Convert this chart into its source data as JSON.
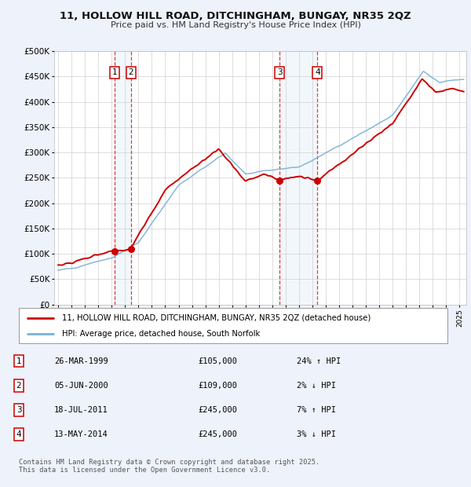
{
  "title1": "11, HOLLOW HILL ROAD, DITCHINGHAM, BUNGAY, NR35 2QZ",
  "title2": "Price paid vs. HM Land Registry's House Price Index (HPI)",
  "ytick_vals": [
    0,
    50000,
    100000,
    150000,
    200000,
    250000,
    300000,
    350000,
    400000,
    450000,
    500000
  ],
  "xlim": [
    1994.7,
    2025.5
  ],
  "ylim": [
    0,
    500000
  ],
  "bg_color": "#eef2fb",
  "plot_bg": "#ffffff",
  "legend1": "11, HOLLOW HILL ROAD, DITCHINGHAM, BUNGAY, NR35 2QZ (detached house)",
  "legend2": "HPI: Average price, detached house, South Norfolk",
  "transactions": [
    {
      "num": 1,
      "date": "26-MAR-1999",
      "price": 105000,
      "pct": "24%",
      "dir": "↑",
      "year": 1999.23
    },
    {
      "num": 2,
      "date": "05-JUN-2000",
      "price": 109000,
      "pct": "2%",
      "dir": "↓",
      "year": 2000.43
    },
    {
      "num": 3,
      "date": "18-JUL-2011",
      "price": 245000,
      "pct": "7%",
      "dir": "↑",
      "year": 2011.54
    },
    {
      "num": 4,
      "date": "13-MAY-2014",
      "price": 245000,
      "pct": "3%",
      "dir": "↓",
      "year": 2014.37
    }
  ],
  "footnote": "Contains HM Land Registry data © Crown copyright and database right 2025.\nThis data is licensed under the Open Government Licence v3.0.",
  "red_color": "#cc0000",
  "blue_color": "#7ab0d4",
  "shade_color": "#cfe0f0"
}
